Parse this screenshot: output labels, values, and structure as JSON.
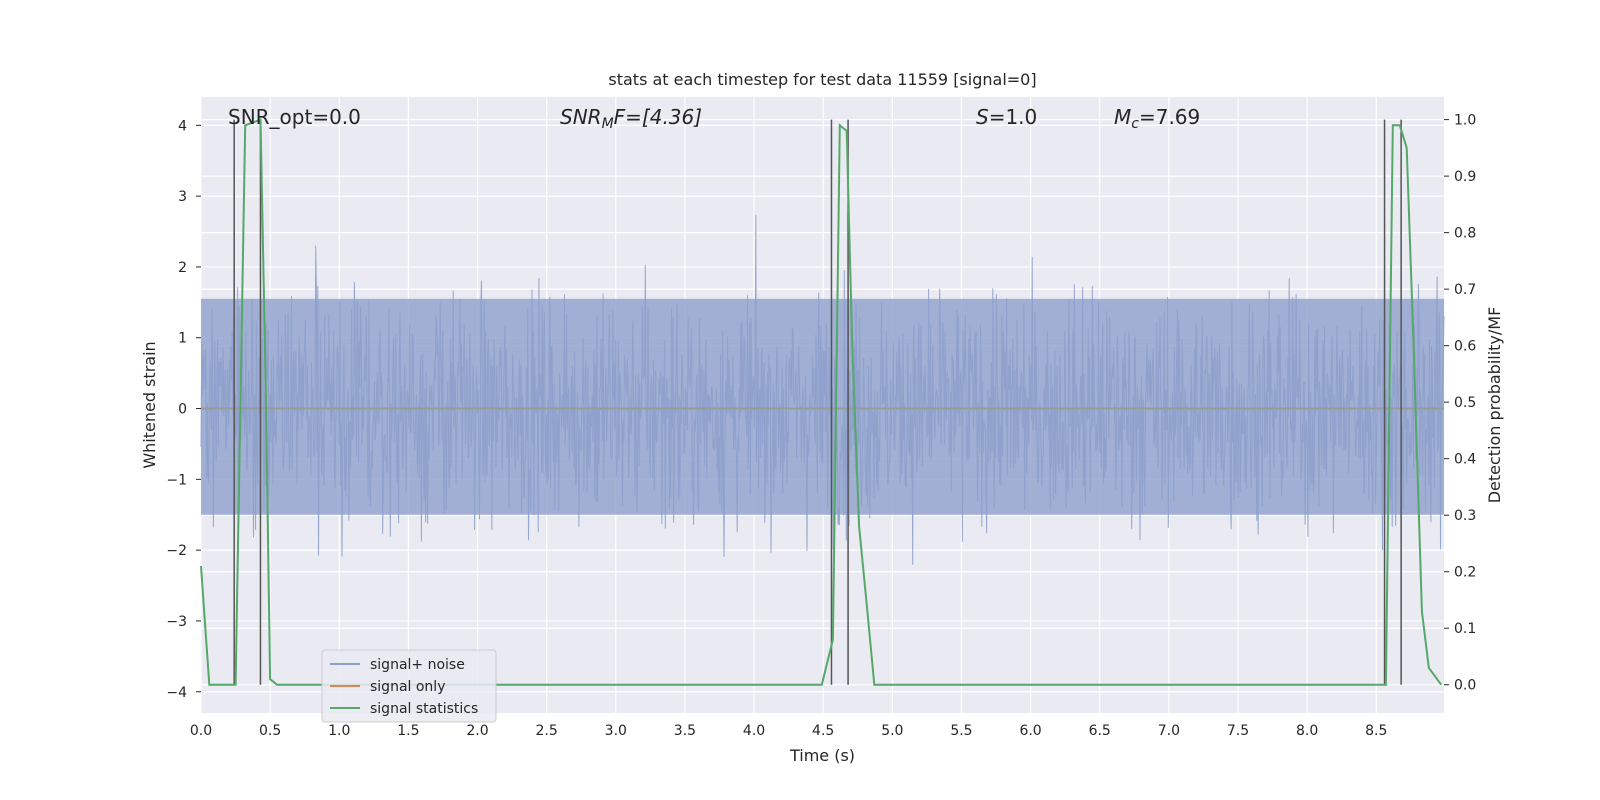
{
  "chart_data": {
    "type": "line",
    "title": "stats at each timestep for test data 11559 [signal=0]",
    "xlabel": "Time (s)",
    "ylabel": "Whitened strain",
    "ylabel_right": "Detection probability/MF",
    "xlim": [
      0.0,
      8.99
    ],
    "ylim": [
      -4.3,
      4.4
    ],
    "ylim_right": [
      -0.05,
      1.04
    ],
    "xticks": [
      "0.0",
      "0.5",
      "1.0",
      "1.5",
      "2.0",
      "2.5",
      "3.0",
      "3.5",
      "4.0",
      "4.5",
      "5.0",
      "5.5",
      "6.0",
      "6.5",
      "7.0",
      "7.5",
      "8.0",
      "8.5"
    ],
    "yticks": [
      "4",
      "3",
      "2",
      "1",
      "0",
      "−1",
      "−2",
      "−3",
      "−4"
    ],
    "yticks_right": [
      "1.0",
      "0.9",
      "0.8",
      "0.7",
      "0.6",
      "0.5",
      "0.4",
      "0.3",
      "0.2",
      "0.1",
      "0.0"
    ],
    "grid": true,
    "legend_position": "lower-left",
    "annotations": {
      "snr_opt": "SNR_opt=0.0",
      "snr_mf_main": "SNR",
      "snr_mf_sub": "M",
      "snr_mf_rest": "F=[4.36]",
      "s_main": "S",
      "s_rest": "=1.0",
      "mc_main": "M",
      "mc_sub": "c",
      "mc_rest": "=7.69"
    },
    "colors": {
      "background": "#eaeaf2",
      "grid": "#ffffff",
      "noise": "#8da0cb",
      "signal_only": "#dd8452",
      "statistics": "#55a868",
      "vlines": "#555555"
    },
    "series": [
      {
        "name": "signal+ noise",
        "noise_std": 0.78,
        "noise_peak_max": 4.0,
        "noise_peak_min": -3.9
      },
      {
        "name": "signal only",
        "x": [
          0.0,
          8.99
        ],
        "y": [
          0.0,
          0.0
        ]
      },
      {
        "name": "signal statistics",
        "axis": "right",
        "x": [
          0.0,
          0.06,
          0.25,
          0.32,
          0.43,
          0.47,
          0.5,
          0.55,
          0.8,
          1.2,
          1.7,
          2.0,
          2.4,
          2.5,
          3.0,
          3.5,
          4.0,
          4.49,
          4.57,
          4.62,
          4.67,
          4.71,
          4.76,
          4.82,
          4.87,
          4.92,
          5.2,
          6.0,
          7.0,
          8.0,
          8.52,
          8.57,
          8.62,
          8.67,
          8.72,
          8.77,
          8.83,
          8.88,
          8.97
        ],
        "y": [
          0.21,
          0.0,
          0.0,
          0.99,
          1.0,
          0.5,
          0.01,
          0.0,
          0.0,
          0.0,
          0.0,
          0.0,
          0.0,
          0.0,
          0.0,
          0.0,
          0.0,
          0.0,
          0.08,
          0.99,
          0.98,
          0.6,
          0.28,
          0.13,
          0.0,
          0.0,
          0.0,
          0.0,
          0.0,
          0.0,
          0.0,
          0.0,
          0.99,
          0.99,
          0.95,
          0.6,
          0.13,
          0.03,
          0.0
        ]
      }
    ],
    "vertical_lines_x": [
      0.24,
      0.43,
      4.56,
      4.68,
      8.56,
      8.68
    ]
  }
}
